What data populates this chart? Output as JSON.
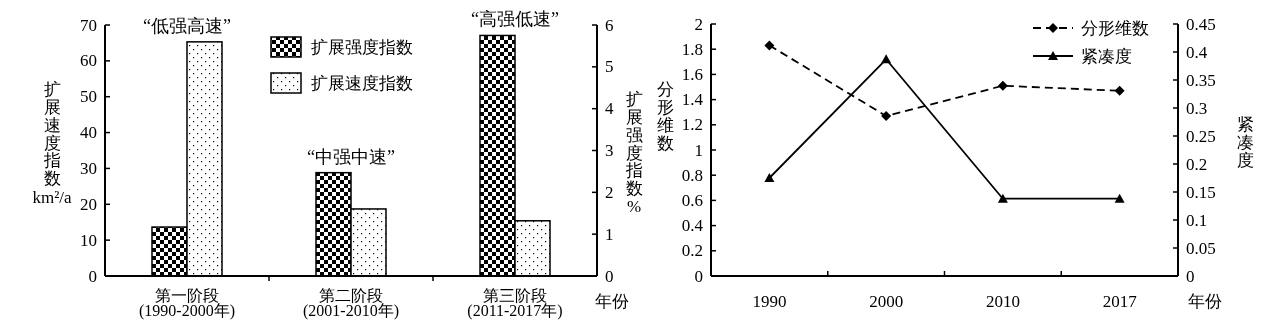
{
  "chart_data": [
    {
      "type": "bar",
      "categories": [
        "第一阶段\n(1990-2000年)",
        "第二阶段\n(2001-2010年)",
        "第三阶段\n(2011-2017年)"
      ],
      "xlabel": "年份",
      "ylabel": "扩展速度指数\nkm²/a",
      "y2label": "扩展强度指数%",
      "series": [
        {
          "name": "扩展强度指数",
          "color": "#000000",
          "axis": "y2",
          "values": [
            1.17,
            2.47,
            5.75
          ]
        },
        {
          "name": "扩展速度指数",
          "color": "#000000",
          "axis": "y",
          "values": [
            65.3,
            18.7,
            15.4
          ]
        }
      ],
      "ylim": [
        0,
        70
      ],
      "yticks": [
        0,
        10,
        20,
        30,
        40,
        50,
        60,
        70
      ],
      "y2lim": [
        0,
        6
      ],
      "y2ticks": [
        0,
        1,
        2,
        3,
        4,
        5,
        6
      ],
      "legend": "top",
      "annotations": [
        "“低强高速”",
        "“中强中速”",
        "“高强低速”"
      ]
    },
    {
      "type": "line",
      "categories": [
        "1990",
        "2000",
        "2010",
        "2017"
      ],
      "xlabel": "年份",
      "ylabel": "分形维数",
      "y2label": "紧凑度",
      "series": [
        {
          "name": "分形维数",
          "color": "#000000",
          "axis": "y",
          "marker": "diamond",
          "line_style": "dashed",
          "values": [
            1.83,
            1.27,
            1.51,
            1.47
          ]
        },
        {
          "name": "紧凑度",
          "color": "#000000",
          "axis": "y2",
          "marker": "triangle",
          "line_style": "solid",
          "values": [
            0.175,
            0.387,
            0.138,
            0.138
          ]
        }
      ],
      "ylim": [
        0,
        2
      ],
      "yticks": [
        0,
        0.2,
        0.4,
        0.6,
        0.8,
        1,
        1.2,
        1.4,
        1.6,
        1.8,
        2
      ],
      "y2lim": [
        0,
        0.45
      ],
      "y2ticks": [
        0,
        0.05,
        0.1,
        0.15,
        0.2,
        0.25,
        0.3,
        0.35,
        0.4,
        0.45
      ],
      "legend": "top right"
    }
  ]
}
